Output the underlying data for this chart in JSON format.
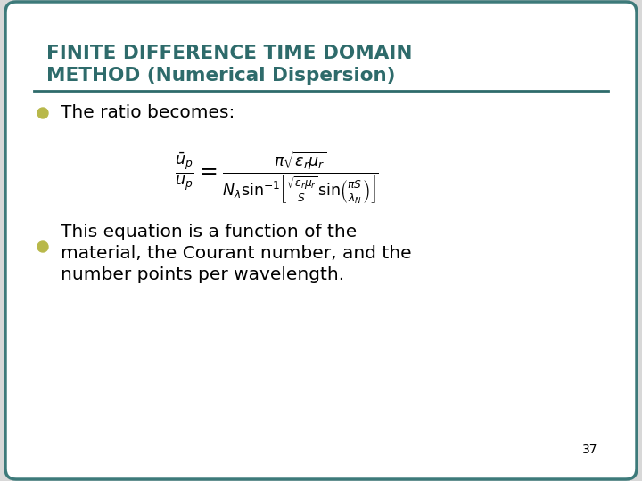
{
  "title_line1": "FINITE DIFFERENCE TIME DOMAIN",
  "title_line2": "METHOD (Numerical Dispersion)",
  "title_color": "#2E6B6B",
  "bg_color": "#FFFFFF",
  "outer_bg": "#D8D8D8",
  "border_color": "#3D7A7A",
  "bullet_color": "#B8B84A",
  "bullet1_text": "The ratio becomes:",
  "bullet2_line1": "This equation is a function of the",
  "bullet2_line2": "material, the Courant number, and the",
  "bullet2_line3": "number points per wavelength.",
  "page_number": "37",
  "equation": "\\frac{\\bar{u}_p}{u_p} = \\frac{\\pi\\sqrt{\\varepsilon_r \\mu_r}}{N_\\lambda \\sin^{-1}\\!\\left[\\frac{\\sqrt{\\varepsilon_r \\mu_r}}{S}\\sin\\!\\left(\\frac{\\pi S}{\\lambda_N}\\right)\\right]}",
  "title_fontsize": 15.5,
  "body_fontsize": 14.5,
  "eq_fontsize": 13,
  "page_fontsize": 10
}
